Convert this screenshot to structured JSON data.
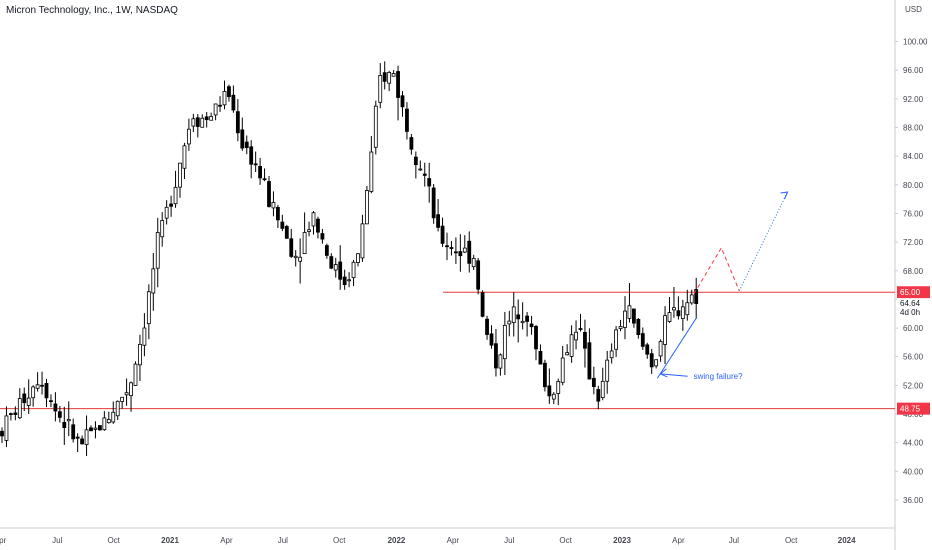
{
  "header": {
    "title": "Micron Technology, Inc., 1W, NASDAQ"
  },
  "axis": {
    "currency": "USD"
  },
  "colors": {
    "bull": "#ffffff",
    "bear": "#000000",
    "wick": "#000000",
    "level": "#e53935",
    "badge": "#f23645",
    "projection_red": "#f23645",
    "projection_blue": "#2962ff",
    "trendline": "#2962ff",
    "axis_text": "#434651"
  },
  "price_badges": [
    {
      "value": "65.00",
      "style": "red"
    },
    {
      "value": "64.64",
      "style": "plain"
    },
    {
      "value": "4d 0h",
      "style": "plain"
    },
    {
      "value": "48.75",
      "style": "red"
    }
  ],
  "annotations": [
    {
      "text": "swing failure?"
    }
  ],
  "chart_data": {
    "type": "candlestick",
    "title": "Micron Technology, Inc., 1W, NASDAQ",
    "interval": "1W",
    "exchange": "NASDAQ",
    "y_ticks": [
      36,
      40,
      44,
      48,
      52,
      56,
      60,
      64,
      68,
      72,
      76,
      80,
      84,
      88,
      92,
      96,
      100
    ],
    "y_tick_labels": [
      "36.00",
      "40.00",
      "44.00",
      "48.00",
      "52.00",
      "56.00",
      "60.00",
      "64.00",
      "68.00",
      "72.00",
      "76.00",
      "80.00",
      "84.00",
      "88.00",
      "92.00",
      "96.00",
      "100.00"
    ],
    "ylim": [
      35,
      102
    ],
    "x_ticks": [
      "Apr",
      "Jul",
      "Oct",
      "2021",
      "Apr",
      "Jul",
      "Oct",
      "2022",
      "Apr",
      "Jul",
      "Oct",
      "2023",
      "Apr",
      "Jul",
      "Oct",
      "2024"
    ],
    "x_tick_bold": [
      "2021",
      "2022",
      "2023",
      "2024"
    ],
    "horizontal_levels": [
      65.0,
      48.75
    ],
    "trendline": {
      "from": [
        0.7345,
        53.0
      ],
      "to": [
        0.7785,
        61.5
      ]
    },
    "projection_path": [
      [
        0.7755,
        64.8
      ],
      [
        0.806,
        71.2
      ],
      [
        0.826,
        65.2
      ],
      [
        0.88,
        79.0
      ]
    ],
    "annotation": {
      "text": "swing failure?",
      "arrow_at": [
        0.7345,
        53.6
      ],
      "text_at": [
        0.775,
        53.0
      ]
    },
    "key_points": [
      {
        "x": 0.0,
        "y": 45.5
      },
      {
        "x": 0.045,
        "y": 53.5
      },
      {
        "x": 0.06,
        "y": 49.0
      },
      {
        "x": 0.09,
        "y": 43.5
      },
      {
        "x": 0.12,
        "y": 47.5
      },
      {
        "x": 0.145,
        "y": 52.0
      },
      {
        "x": 0.16,
        "y": 60.0
      },
      {
        "x": 0.175,
        "y": 71.0
      },
      {
        "x": 0.19,
        "y": 78.0
      },
      {
        "x": 0.215,
        "y": 90.0
      },
      {
        "x": 0.23,
        "y": 89.0
      },
      {
        "x": 0.255,
        "y": 93.0
      },
      {
        "x": 0.27,
        "y": 86.0
      },
      {
        "x": 0.285,
        "y": 83.0
      },
      {
        "x": 0.3,
        "y": 78.0
      },
      {
        "x": 0.33,
        "y": 70.0
      },
      {
        "x": 0.35,
        "y": 76.0
      },
      {
        "x": 0.37,
        "y": 69.0
      },
      {
        "x": 0.385,
        "y": 66.5
      },
      {
        "x": 0.4,
        "y": 70.0
      },
      {
        "x": 0.415,
        "y": 84.0
      },
      {
        "x": 0.425,
        "y": 95.0
      },
      {
        "x": 0.44,
        "y": 95.5
      },
      {
        "x": 0.455,
        "y": 88.0
      },
      {
        "x": 0.475,
        "y": 81.0
      },
      {
        "x": 0.49,
        "y": 72.5
      },
      {
        "x": 0.51,
        "y": 71.0
      },
      {
        "x": 0.53,
        "y": 70.0
      },
      {
        "x": 0.54,
        "y": 60.5
      },
      {
        "x": 0.555,
        "y": 55.0
      },
      {
        "x": 0.565,
        "y": 60.0
      },
      {
        "x": 0.58,
        "y": 63.0
      },
      {
        "x": 0.59,
        "y": 62.0
      },
      {
        "x": 0.6,
        "y": 56.0
      },
      {
        "x": 0.615,
        "y": 50.0
      },
      {
        "x": 0.63,
        "y": 56.0
      },
      {
        "x": 0.645,
        "y": 61.0
      },
      {
        "x": 0.655,
        "y": 55.0
      },
      {
        "x": 0.67,
        "y": 50.0
      },
      {
        "x": 0.685,
        "y": 58.0
      },
      {
        "x": 0.7,
        "y": 63.0
      },
      {
        "x": 0.715,
        "y": 58.0
      },
      {
        "x": 0.73,
        "y": 55.0
      },
      {
        "x": 0.745,
        "y": 61.0
      },
      {
        "x": 0.76,
        "y": 63.0
      },
      {
        "x": 0.775,
        "y": 64.6
      }
    ]
  }
}
